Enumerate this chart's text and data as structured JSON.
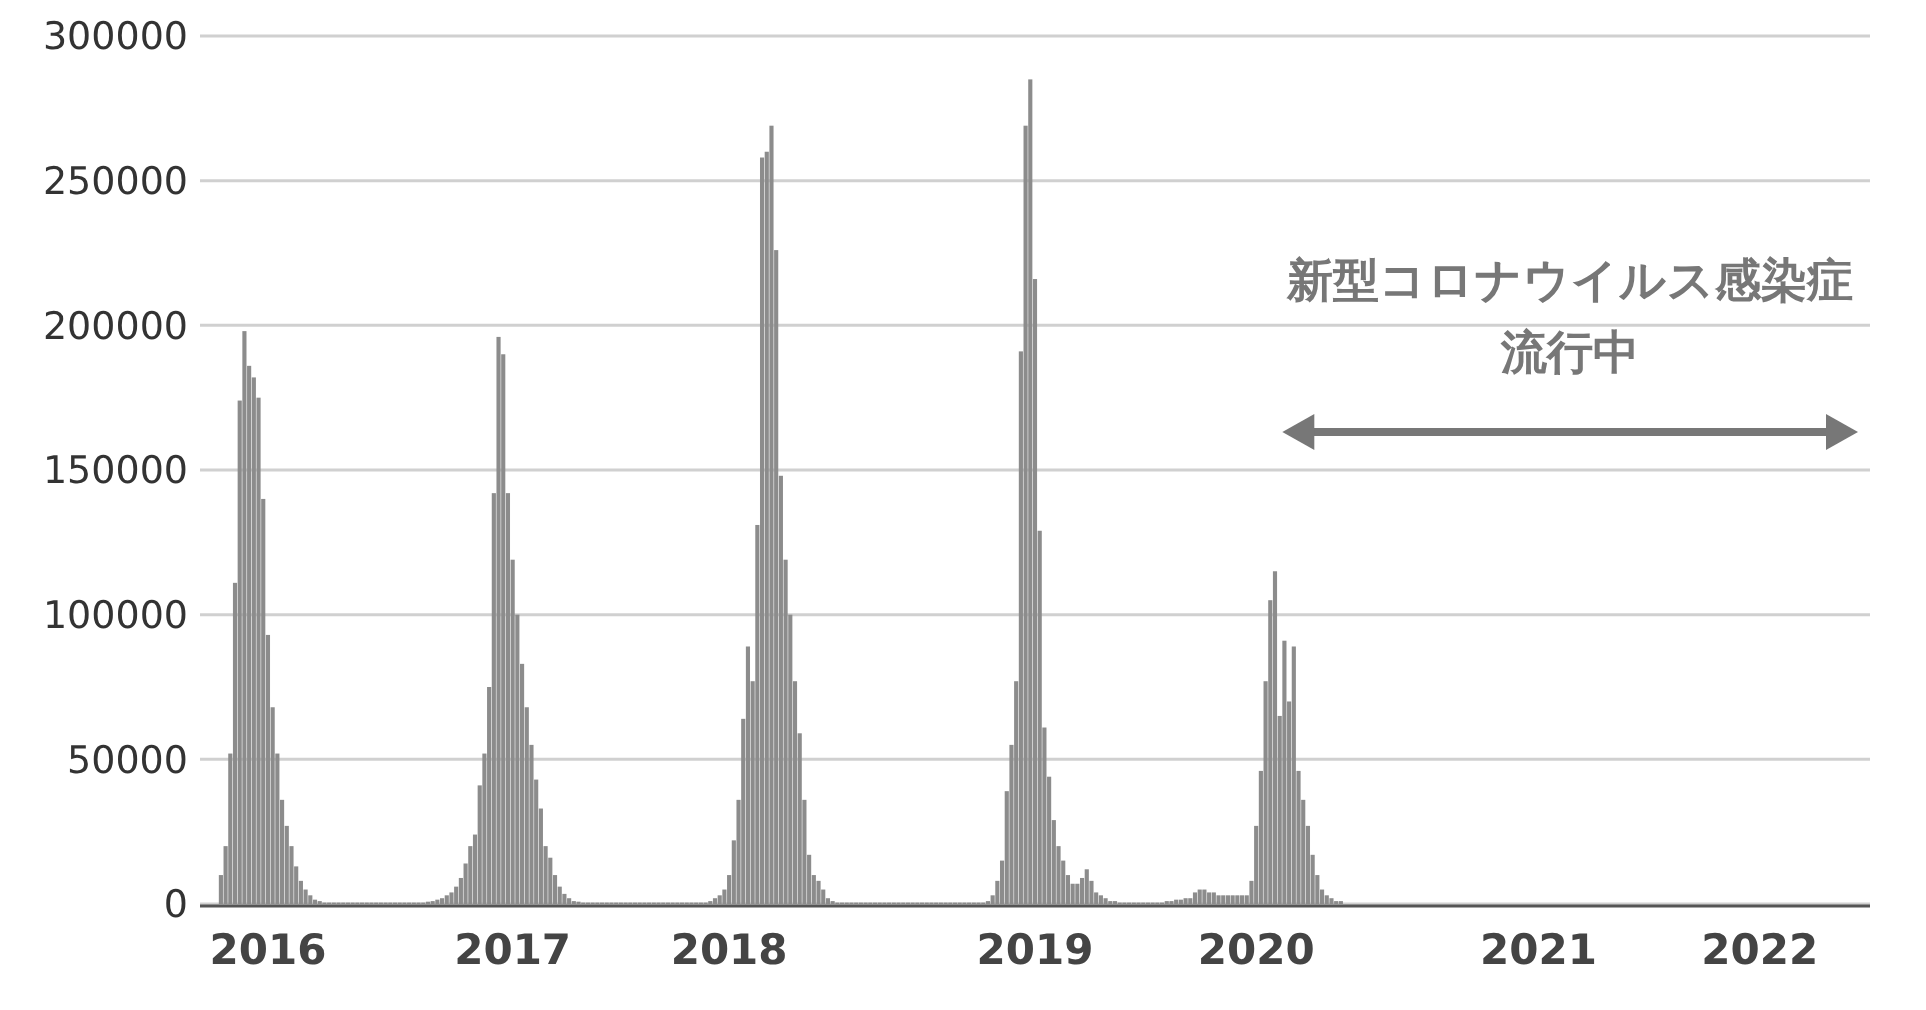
{
  "chart_data": {
    "type": "bar",
    "categories": [
      null,
      null,
      null,
      null,
      null,
      null,
      null,
      null,
      null,
      null,
      null,
      null,
      null,
      null,
      "2016",
      null,
      null,
      null,
      null,
      null,
      null,
      null,
      null,
      null,
      null,
      null,
      null,
      null,
      null,
      null,
      null,
      null,
      null,
      null,
      null,
      null,
      null,
      null,
      null,
      null,
      null,
      null,
      null,
      null,
      null,
      null,
      null,
      null,
      null,
      null,
      null,
      null,
      null,
      null,
      null,
      null,
      null,
      null,
      null,
      null,
      null,
      null,
      null,
      null,
      null,
      null,
      "2017",
      null,
      null,
      null,
      null,
      null,
      null,
      null,
      null,
      null,
      null,
      null,
      null,
      null,
      null,
      null,
      null,
      null,
      null,
      null,
      null,
      null,
      null,
      null,
      null,
      null,
      null,
      null,
      null,
      null,
      null,
      null,
      null,
      null,
      null,
      null,
      null,
      null,
      null,
      null,
      null,
      null,
      null,
      null,
      null,
      null,
      "2018",
      null,
      null,
      null,
      null,
      null,
      null,
      null,
      null,
      null,
      null,
      null,
      null,
      null,
      null,
      null,
      null,
      null,
      null,
      null,
      null,
      null,
      null,
      null,
      null,
      null,
      null,
      null,
      null,
      null,
      null,
      null,
      null,
      null,
      null,
      null,
      null,
      null,
      null,
      null,
      null,
      null,
      null,
      null,
      null,
      null,
      null,
      null,
      null,
      null,
      null,
      null,
      null,
      null,
      null,
      null,
      null,
      null,
      null,
      null,
      null,
      null,
      null,
      null,
      null,
      "2019",
      null,
      null,
      null,
      null,
      null,
      null,
      null,
      null,
      null,
      null,
      null,
      null,
      null,
      null,
      null,
      null,
      null,
      null,
      null,
      null,
      null,
      null,
      null,
      null,
      null,
      null,
      null,
      null,
      null,
      null,
      null,
      null,
      null,
      null,
      null,
      null,
      null,
      null,
      null,
      null,
      null,
      null,
      null,
      null,
      null,
      null,
      "2020",
      null,
      null,
      null,
      null,
      null,
      null,
      null,
      null,
      null,
      null,
      null,
      null,
      null,
      null,
      null,
      null,
      null,
      null,
      null,
      null,
      null,
      null,
      null,
      null,
      null,
      null,
      null,
      null,
      null,
      null,
      null,
      null,
      null,
      null,
      null,
      null,
      null,
      null,
      null,
      null,
      null,
      null,
      null,
      null,
      null,
      null,
      null,
      null,
      null,
      null,
      null,
      null,
      null,
      null,
      null,
      null,
      null,
      null,
      null,
      "2021",
      null,
      null,
      null,
      null,
      null,
      null,
      null,
      null,
      null,
      null,
      null,
      null,
      null,
      null,
      null,
      null,
      null,
      null,
      null,
      null,
      null,
      null,
      null,
      null,
      null,
      null,
      null,
      null,
      null,
      null,
      null,
      null,
      null,
      null,
      null,
      null,
      null,
      null,
      null,
      null,
      null,
      null,
      null,
      null,
      null,
      null,
      "2022",
      null,
      null,
      null,
      null,
      null,
      null,
      null,
      null,
      null,
      null,
      null,
      null,
      null,
      null,
      null,
      null,
      null,
      null,
      null,
      null,
      null,
      null,
      null
    ],
    "values": [
      null,
      null,
      null,
      null,
      10000,
      20000,
      52000,
      111000,
      174000,
      198000,
      186000,
      182000,
      175000,
      140000,
      93000,
      68000,
      52000,
      36000,
      27000,
      20000,
      13000,
      8000,
      5000,
      3000,
      1500,
      1000,
      500,
      500,
      500,
      500,
      500,
      500,
      500,
      500,
      500,
      500,
      500,
      500,
      500,
      500,
      500,
      500,
      500,
      500,
      500,
      500,
      500,
      500,
      800,
      1000,
      1500,
      2000,
      3000,
      4000,
      6000,
      9000,
      14000,
      20000,
      24000,
      41000,
      52000,
      75000,
      142000,
      196000,
      190000,
      142000,
      119000,
      100000,
      83000,
      68000,
      55000,
      43000,
      33000,
      20000,
      16000,
      10000,
      6000,
      3500,
      2000,
      1000,
      800,
      500,
      500,
      500,
      500,
      500,
      500,
      500,
      500,
      500,
      500,
      500,
      500,
      500,
      500,
      500,
      500,
      500,
      500,
      500,
      500,
      500,
      500,
      500,
      500,
      500,
      500,
      500,
      1000,
      2000,
      3000,
      5000,
      10000,
      22000,
      36000,
      64000,
      89000,
      77000,
      131000,
      258000,
      260000,
      269000,
      226000,
      148000,
      119000,
      100000,
      77000,
      59000,
      36000,
      17000,
      10000,
      8000,
      5000,
      2000,
      1000,
      500,
      500,
      500,
      500,
      500,
      500,
      500,
      500,
      500,
      500,
      500,
      500,
      500,
      500,
      500,
      500,
      500,
      500,
      500,
      500,
      500,
      500,
      500,
      500,
      500,
      500,
      500,
      500,
      500,
      500,
      500,
      500,
      1000,
      3000,
      8000,
      15000,
      39000,
      55000,
      77000,
      191000,
      269000,
      285000,
      216000,
      129000,
      61000,
      44000,
      29000,
      20000,
      15000,
      10000,
      7000,
      7000,
      9000,
      12000,
      8000,
      4000,
      3000,
      2000,
      1000,
      1000,
      500,
      500,
      500,
      500,
      500,
      500,
      500,
      500,
      500,
      500,
      1000,
      1000,
      1500,
      1500,
      2000,
      2000,
      4000,
      5000,
      5000,
      4000,
      4000,
      3000,
      3000,
      3000,
      3000,
      3000,
      3000,
      3000,
      8000,
      27000,
      46000,
      77000,
      105000,
      115000,
      65000,
      91000,
      70000,
      89000,
      46000,
      36000,
      27000,
      17000,
      10000,
      5000,
      3000,
      2000,
      1000,
      1000,
      null,
      null,
      null,
      null,
      null,
      null,
      null,
      null,
      null,
      null,
      null,
      null,
      null,
      null,
      null,
      null,
      null,
      null,
      null,
      null,
      null,
      null,
      null,
      null,
      null,
      null,
      null,
      null,
      null,
      null,
      null,
      null,
      null,
      null,
      null,
      null,
      null,
      null,
      null,
      null,
      null,
      null,
      null,
      null,
      null,
      null,
      null,
      null,
      null,
      null,
      null,
      null,
      null,
      null,
      null,
      null,
      null,
      null,
      null,
      null,
      null,
      null,
      null,
      null,
      null,
      null,
      null,
      null,
      null,
      null,
      null,
      null,
      null,
      null,
      null,
      null,
      null,
      null,
      null,
      null,
      null,
      null,
      null,
      null,
      null,
      null,
      null,
      null,
      null,
      null,
      null,
      null,
      null,
      null,
      null,
      null,
      null,
      null,
      null,
      null,
      null,
      null,
      null,
      null,
      null,
      null,
      null,
      null,
      null,
      null,
      null,
      null
    ],
    "color": "#8c8c8c",
    "ylim": [
      0,
      300000
    ],
    "yticks": [
      0,
      50000,
      100000,
      150000,
      200000,
      250000,
      300000
    ],
    "grid": "y",
    "annotations": [
      "新型コロナウイルス感染症",
      "流行中"
    ]
  }
}
